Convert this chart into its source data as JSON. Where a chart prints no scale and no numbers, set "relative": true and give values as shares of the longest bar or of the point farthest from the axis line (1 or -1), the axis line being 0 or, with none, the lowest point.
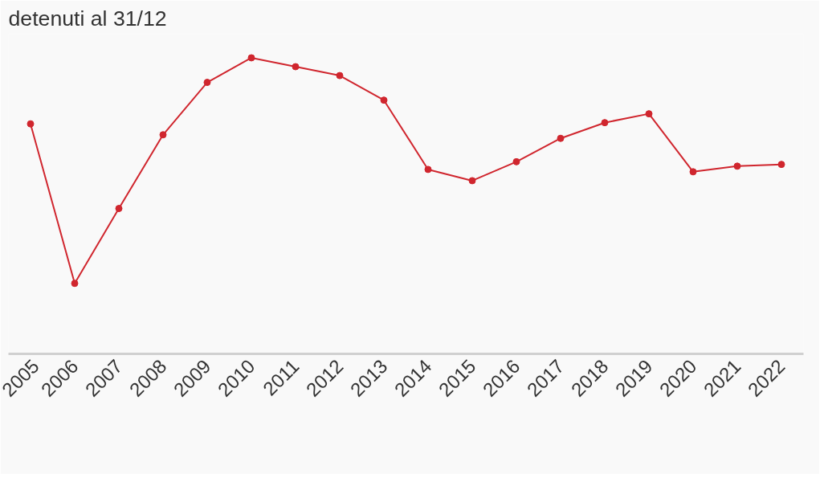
{
  "chart_data": {
    "type": "line",
    "title": "detenuti al 31/12",
    "relative": true,
    "categories": [
      "2005",
      "2006",
      "2007",
      "2008",
      "2009",
      "2010",
      "2011",
      "2012",
      "2013",
      "2014",
      "2015",
      "2016",
      "2017",
      "2018",
      "2019",
      "2020",
      "2021",
      "2022"
    ],
    "series": [
      {
        "color": "#d0262e",
        "values": [
          0.777,
          0.238,
          0.491,
          0.74,
          0.917,
          1,
          0.97,
          0.94,
          0.857,
          0.623,
          0.585,
          0.649,
          0.728,
          0.781,
          0.811,
          0.615,
          0.634,
          0.64
        ]
      }
    ],
    "marker": "circle",
    "grid": false
  }
}
